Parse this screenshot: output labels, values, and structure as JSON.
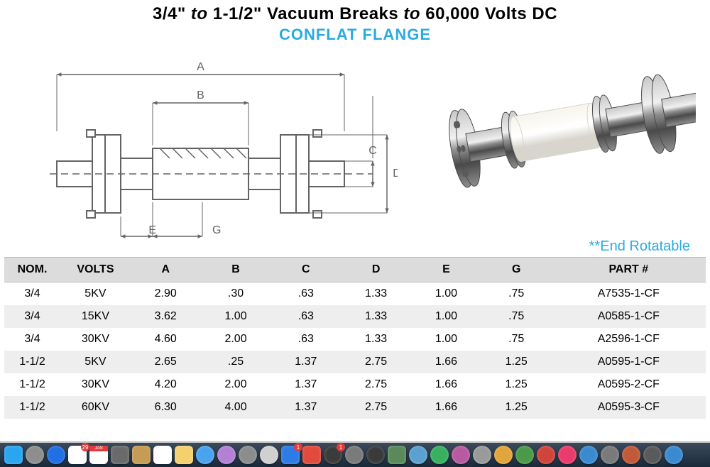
{
  "title": {
    "main_prefix": "3/4\" ",
    "main_mid_italic": "to",
    "main_mid": " 1-1/2\" Vacuum Breaks ",
    "main_end_italic": "to",
    "main_end": " 60,000 Volts DC",
    "sub": "CONFLAT FLANGE"
  },
  "diagram": {
    "labels": {
      "A": "A",
      "B": "B",
      "C": "C",
      "D": "D",
      "D_star": "**",
      "E": "E",
      "G": "G"
    },
    "stroke": "#636466",
    "tick_len": 6,
    "note": "**End Rotatable",
    "note_color": "#29abe2"
  },
  "photo": {
    "metal_light": "#c8c8c8",
    "metal_mid": "#8f8f8f",
    "metal_dark": "#4a4a4a",
    "ceramic": "#f6f4ec",
    "ceramic_shadow": "#d8d6cc",
    "bolt": "#5a5a5a"
  },
  "table": {
    "columns": [
      "NOM.",
      "VOLTS",
      "A",
      "B",
      "C",
      "D",
      "E",
      "G",
      "PART #"
    ],
    "col_widths_pct": [
      8,
      10,
      10,
      10,
      10,
      10,
      10,
      10,
      22
    ],
    "header_bg": "#dcdcdc",
    "row_even_bg": "#eeeeee",
    "row_odd_bg": "#ffffff",
    "text_color": "#000000",
    "fontsize_pt": 12,
    "rows": [
      [
        "3/4",
        "5KV",
        "2.90",
        ".30",
        ".63",
        "1.33",
        "1.00",
        ".75",
        "A7535-1-CF"
      ],
      [
        "3/4",
        "15KV",
        "3.62",
        "1.00",
        ".63",
        "1.33",
        "1.00",
        ".75",
        "A0585-1-CF"
      ],
      [
        "3/4",
        "30KV",
        "4.60",
        "2.00",
        ".63",
        "1.33",
        "1.00",
        ".75",
        "A2596-1-CF"
      ],
      [
        "1-1/2",
        "5KV",
        "2.65",
        ".25",
        "1.37",
        "2.75",
        "1.66",
        "1.25",
        "A0595-1-CF"
      ],
      [
        "1-1/2",
        "30KV",
        "4.20",
        "2.00",
        "1.37",
        "2.75",
        "1.66",
        "1.25",
        "A0595-2-CF"
      ],
      [
        "1-1/2",
        "60KV",
        "6.30",
        "4.00",
        "1.37",
        "2.75",
        "1.66",
        "1.25",
        "A0595-3-CF"
      ]
    ]
  },
  "dock": {
    "bg_top": "#3a4a5a",
    "bg_bottom": "#1a2a3a",
    "icons": [
      {
        "name": "finder-icon",
        "color": "#2aa5f0",
        "round": false
      },
      {
        "name": "launchpad-icon",
        "color": "#8e8e8e",
        "round": true
      },
      {
        "name": "app-store-icon",
        "color": "#1f6fe5",
        "round": true
      },
      {
        "name": "calendar-icon",
        "color": "#ffffff",
        "round": false,
        "badge": "29",
        "badge_bg": "#e23b3b"
      },
      {
        "name": "calendar2-icon",
        "color": "#ffffff",
        "round": false,
        "label": "JAN",
        "label_bg": "#e23b3b"
      },
      {
        "name": "generic1-icon",
        "color": "#6a6a6a",
        "round": false
      },
      {
        "name": "generic2-icon",
        "color": "#c59b55",
        "round": false
      },
      {
        "name": "reminders-icon",
        "color": "#ffffff",
        "round": false
      },
      {
        "name": "notes-icon",
        "color": "#f4d06f",
        "round": false
      },
      {
        "name": "safari-icon",
        "color": "#4aa3ef",
        "round": true
      },
      {
        "name": "spotlight-icon",
        "color": "#b380d6",
        "round": true
      },
      {
        "name": "generic3-icon",
        "color": "#8c8c8c",
        "round": true
      },
      {
        "name": "generic4-icon",
        "color": "#d0d0d0",
        "round": true
      },
      {
        "name": "mail-icon",
        "color": "#2d7be5",
        "round": false,
        "badge": "1",
        "badge_bg": "#e23b3b"
      },
      {
        "name": "photos-icon",
        "color": "#e24a3b",
        "round": false
      },
      {
        "name": "generic5-icon",
        "color": "#3b3b3b",
        "round": true,
        "badge": "1",
        "badge_bg": "#e23b3b"
      },
      {
        "name": "settings-icon",
        "color": "#7a7a7a",
        "round": true
      },
      {
        "name": "generic6-icon",
        "color": "#3a3a3a",
        "round": true
      },
      {
        "name": "generic7-icon",
        "color": "#5a8a5a",
        "round": false
      },
      {
        "name": "generic8-icon",
        "color": "#5aa0d0",
        "round": true
      },
      {
        "name": "generic9-icon",
        "color": "#38b060",
        "round": true
      },
      {
        "name": "generic10-icon",
        "color": "#b85aa0",
        "round": true
      },
      {
        "name": "generic11-icon",
        "color": "#9a9a9a",
        "round": true
      },
      {
        "name": "generic12-icon",
        "color": "#e2a53b",
        "round": true
      },
      {
        "name": "generic13-icon",
        "color": "#4a9a4a",
        "round": true
      },
      {
        "name": "generic14-icon",
        "color": "#d0443b",
        "round": true
      },
      {
        "name": "music-icon",
        "color": "#ea3b6a",
        "round": true
      },
      {
        "name": "generic15-icon",
        "color": "#3a8ad0",
        "round": true
      },
      {
        "name": "generic16-icon",
        "color": "#7a7a7a",
        "round": true
      },
      {
        "name": "generic17-icon",
        "color": "#c05a3b",
        "round": true
      },
      {
        "name": "generic18-icon",
        "color": "#5a5a5a",
        "round": true
      },
      {
        "name": "generic19-icon",
        "color": "#3b8ad0",
        "round": true
      }
    ]
  }
}
